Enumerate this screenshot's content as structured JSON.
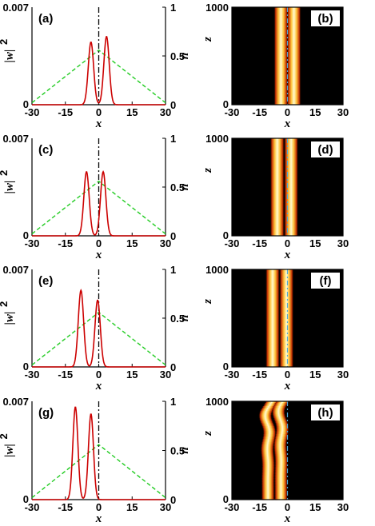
{
  "profile_axes": {
    "xlabel": "x",
    "ylabel_left": "|w|",
    "ylabel_left_sup": "2",
    "ylabel_right": "n",
    "x_ticks": [
      "-30",
      "-15",
      "0",
      "15",
      "30"
    ],
    "y_left_ticks": [
      "0",
      "0.007"
    ],
    "y_right_ticks": [
      "0",
      "0.5",
      "1"
    ],
    "xlim": [
      -30,
      30
    ],
    "ylim_left": [
      0,
      0.007
    ],
    "ylim_right": [
      0,
      1
    ],
    "y_right_tick_values": [
      0,
      0.5,
      1
    ]
  },
  "evolution_axes": {
    "xlabel": "x",
    "ylabel": "z",
    "x_ticks": [
      "-30",
      "-15",
      "0",
      "15",
      "30"
    ],
    "y_ticks": [
      "0",
      "1000"
    ],
    "xlim": [
      -30,
      30
    ],
    "zlim": [
      0,
      1000
    ]
  },
  "colors": {
    "intensity_curve": "#cc0000",
    "index_profile": "#22cc22",
    "axis_line": "#000000",
    "background": "#000000",
    "beam_core": "#fffbd0",
    "beam_mid": "#ffc23a",
    "beam_edge": "#c02a00",
    "center_line": "#4fa8d8"
  },
  "chart_data": [
    {
      "panel": "(a)",
      "type": "line",
      "series": [
        {
          "kind": "intensity",
          "peaks": [
            {
              "x": -3.5,
              "amp": 0.0045,
              "width": 1.7
            },
            {
              "x": 3.5,
              "amp": 0.0049,
              "width": 1.7
            }
          ]
        },
        {
          "kind": "index",
          "x": [
            -30,
            0,
            30
          ],
          "y": [
            0.02,
            0.56,
            0.02
          ]
        }
      ]
    },
    {
      "panel": "(b)",
      "type": "heatmap",
      "beams": [
        {
          "x": -3.5,
          "width": 1.5,
          "wiggle": 0
        },
        {
          "x": 3.5,
          "width": 1.5,
          "wiggle": 0
        }
      ]
    },
    {
      "panel": "(c)",
      "type": "line",
      "series": [
        {
          "kind": "intensity",
          "peaks": [
            {
              "x": -5.5,
              "amp": 0.0046,
              "width": 1.7
            },
            {
              "x": 2.0,
              "amp": 0.0046,
              "width": 1.7
            }
          ]
        },
        {
          "kind": "index",
          "x": [
            -30,
            0,
            30
          ],
          "y": [
            0.02,
            0.56,
            0.02
          ]
        }
      ]
    },
    {
      "panel": "(d)",
      "type": "heatmap",
      "beams": [
        {
          "x": -5.5,
          "width": 1.5,
          "wiggle": 0
        },
        {
          "x": 2.0,
          "width": 1.5,
          "wiggle": 0
        }
      ]
    },
    {
      "panel": "(e)",
      "type": "line",
      "series": [
        {
          "kind": "intensity",
          "peaks": [
            {
              "x": -8.0,
              "amp": 0.0055,
              "width": 1.7
            },
            {
              "x": -0.5,
              "amp": 0.0048,
              "width": 1.7
            }
          ]
        },
        {
          "kind": "index",
          "x": [
            -30,
            0,
            30
          ],
          "y": [
            0.02,
            0.56,
            0.02
          ]
        }
      ]
    },
    {
      "panel": "(f)",
      "type": "heatmap",
      "beams": [
        {
          "x": -8.0,
          "width": 1.5,
          "wiggle": 0
        },
        {
          "x": -0.5,
          "width": 1.5,
          "wiggle": 0
        }
      ]
    },
    {
      "panel": "(g)",
      "type": "line",
      "series": [
        {
          "kind": "intensity",
          "peaks": [
            {
              "x": -10.5,
              "amp": 0.0066,
              "width": 1.6
            },
            {
              "x": -3.5,
              "amp": 0.0061,
              "width": 1.6
            }
          ]
        },
        {
          "kind": "index",
          "x": [
            -30,
            0,
            30
          ],
          "y": [
            0.02,
            0.56,
            0.02
          ]
        }
      ]
    },
    {
      "panel": "(h)",
      "type": "heatmap",
      "beams": [
        {
          "x": -10.5,
          "width": 1.4,
          "wiggle": 1.0
        },
        {
          "x": -3.5,
          "width": 1.4,
          "wiggle": 0.8
        }
      ]
    }
  ]
}
